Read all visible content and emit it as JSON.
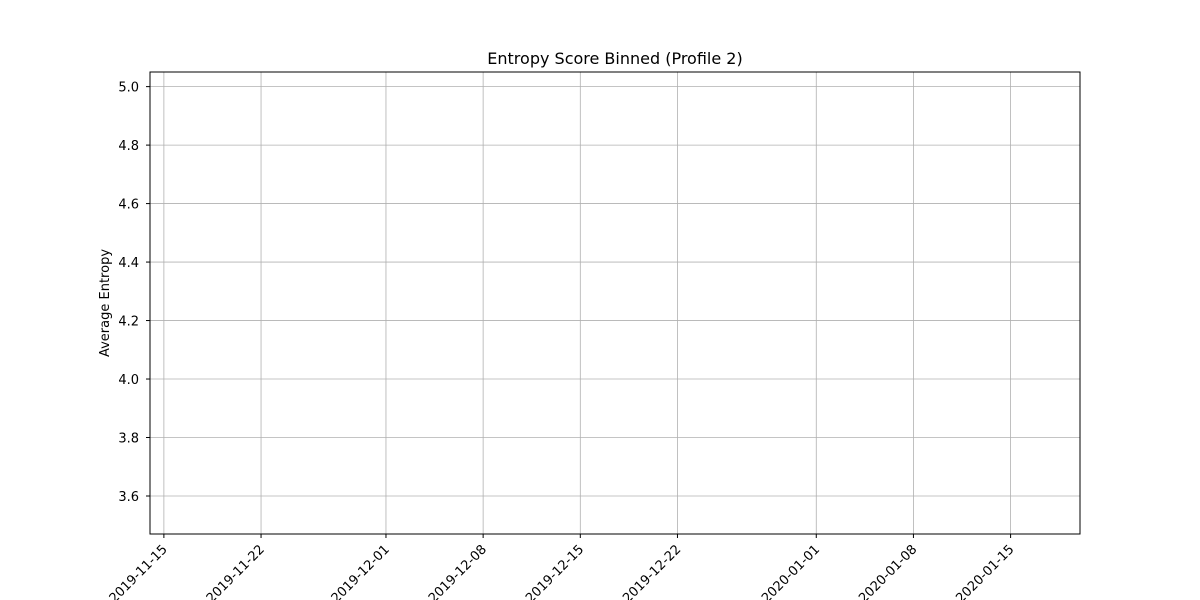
{
  "chart_data": {
    "type": "line",
    "title": "Entropy Score Binned (Profile 2)",
    "xlabel": "",
    "ylabel": "Average Entropy",
    "x_ticks": [
      "2019-11-15",
      "2019-11-22",
      "2019-12-01",
      "2019-12-08",
      "2019-12-15",
      "2019-12-22",
      "2020-01-01",
      "2020-01-08",
      "2020-01-15"
    ],
    "y_ticks": [
      3.6,
      3.8,
      4.0,
      4.2,
      4.4,
      4.6,
      4.8,
      5.0
    ],
    "xlim": [
      "2019-11-14",
      "2020-01-20"
    ],
    "ylim": [
      3.47,
      5.05
    ],
    "grid": true,
    "series": []
  }
}
